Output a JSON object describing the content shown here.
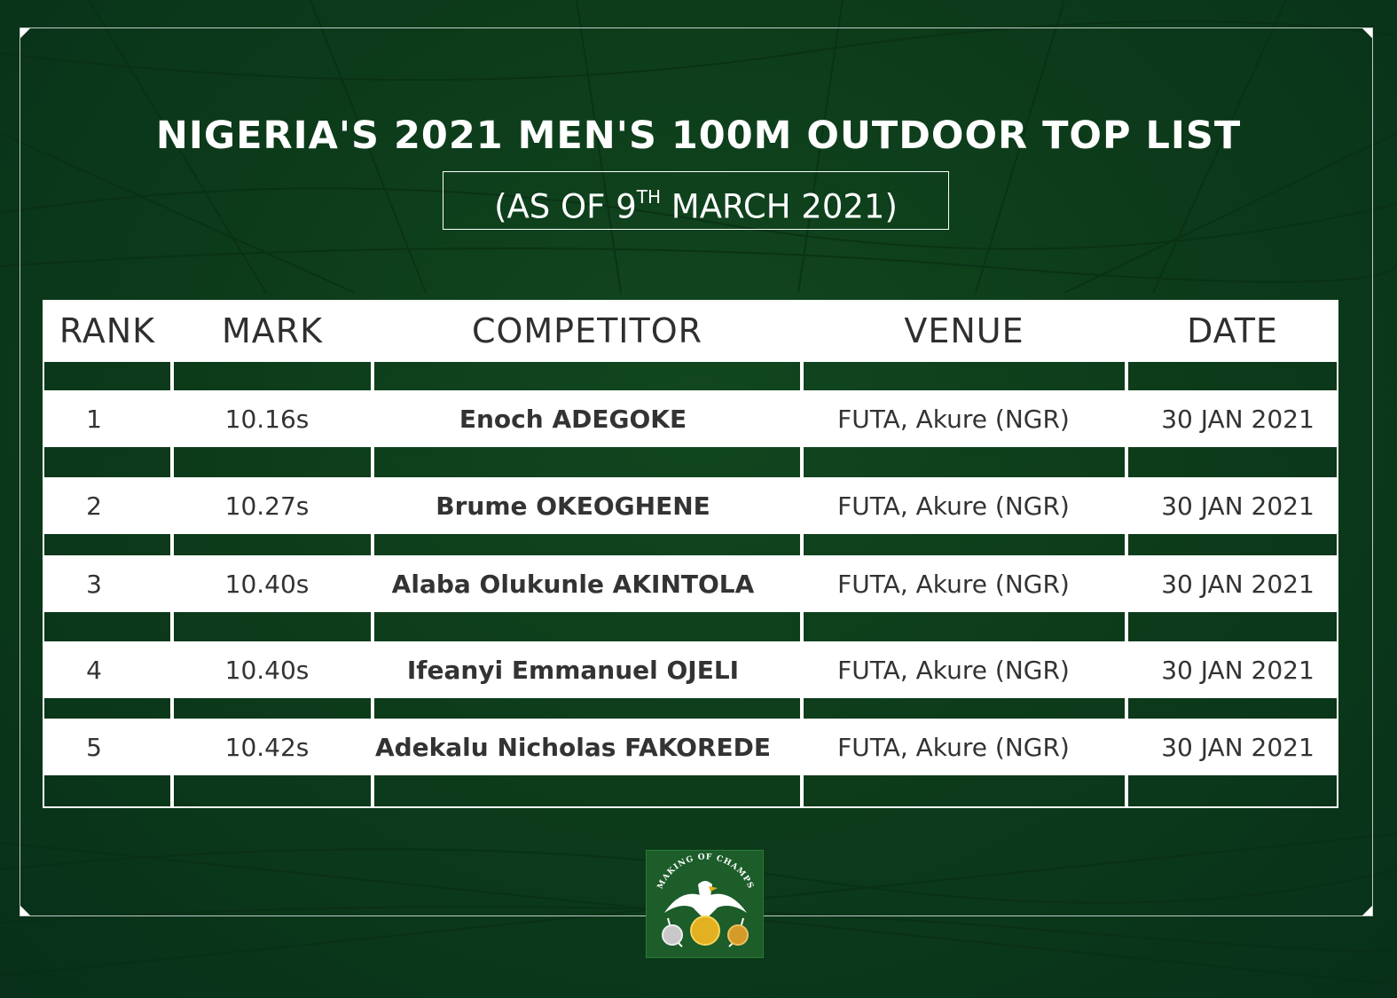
{
  "header": {
    "title": "NIGERIA'S 2021 MEN'S 100M OUTDOOR  TOP LIST",
    "subtitle_prefix": "(AS OF 9",
    "subtitle_sup": "TH",
    "subtitle_suffix": " MARCH 2021)"
  },
  "table": {
    "columns": [
      "RANK",
      "MARK",
      "COMPETITOR",
      "VENUE",
      "DATE"
    ],
    "rows": [
      {
        "rank": "1",
        "mark": "10.16s",
        "competitor": "Enoch ADEGOKE",
        "venue": "FUTA, Akure (NGR)",
        "date": "30 JAN 2021"
      },
      {
        "rank": "2",
        "mark": "10.27s",
        "competitor": "Brume OKEOGHENE",
        "venue": "FUTA, Akure (NGR)",
        "date": "30 JAN 2021"
      },
      {
        "rank": "3",
        "mark": "10.40s",
        "competitor": "Alaba Olukunle AKINTOLA",
        "venue": "FUTA, Akure (NGR)",
        "date": "30 JAN 2021"
      },
      {
        "rank": "4",
        "mark": "10.40s",
        "competitor": "Ifeanyi Emmanuel OJELI",
        "venue": "FUTA, Akure (NGR)",
        "date": "30 JAN 2021"
      },
      {
        "rank": "5",
        "mark": "10.42s",
        "competitor": "Adekalu Nicholas FAKOREDE",
        "venue": "FUTA, Akure (NGR)",
        "date": "30 JAN 2021"
      }
    ]
  },
  "logo": {
    "text": "MAKING OF CHAMPS",
    "icon": "eagle-medals-icon"
  },
  "colors": {
    "background": "#0d3f1c",
    "table_bg": "#ffffff",
    "text": "#333333",
    "gold": "#e2b020",
    "silver": "#c8c8c8",
    "bronze": "#d49a2a"
  }
}
